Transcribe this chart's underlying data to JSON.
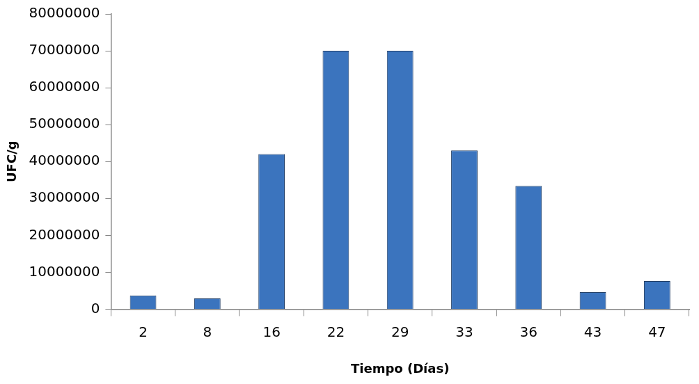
{
  "chart_data": {
    "type": "bar",
    "xlabel": "Tiempo (Días)",
    "ylabel": "UFC/g",
    "categories": [
      "2",
      "8",
      "16",
      "22",
      "29",
      "33",
      "36",
      "43",
      "47"
    ],
    "values": [
      3700000,
      2900000,
      42000000,
      70000000,
      70000000,
      43000000,
      33400000,
      4600000,
      7600000
    ],
    "color": "#3b74be",
    "ylim": [
      0,
      80000000
    ],
    "yticks": [
      0,
      10000000,
      20000000,
      30000000,
      40000000,
      50000000,
      60000000,
      70000000,
      80000000
    ],
    "grid": false,
    "legend": false
  }
}
